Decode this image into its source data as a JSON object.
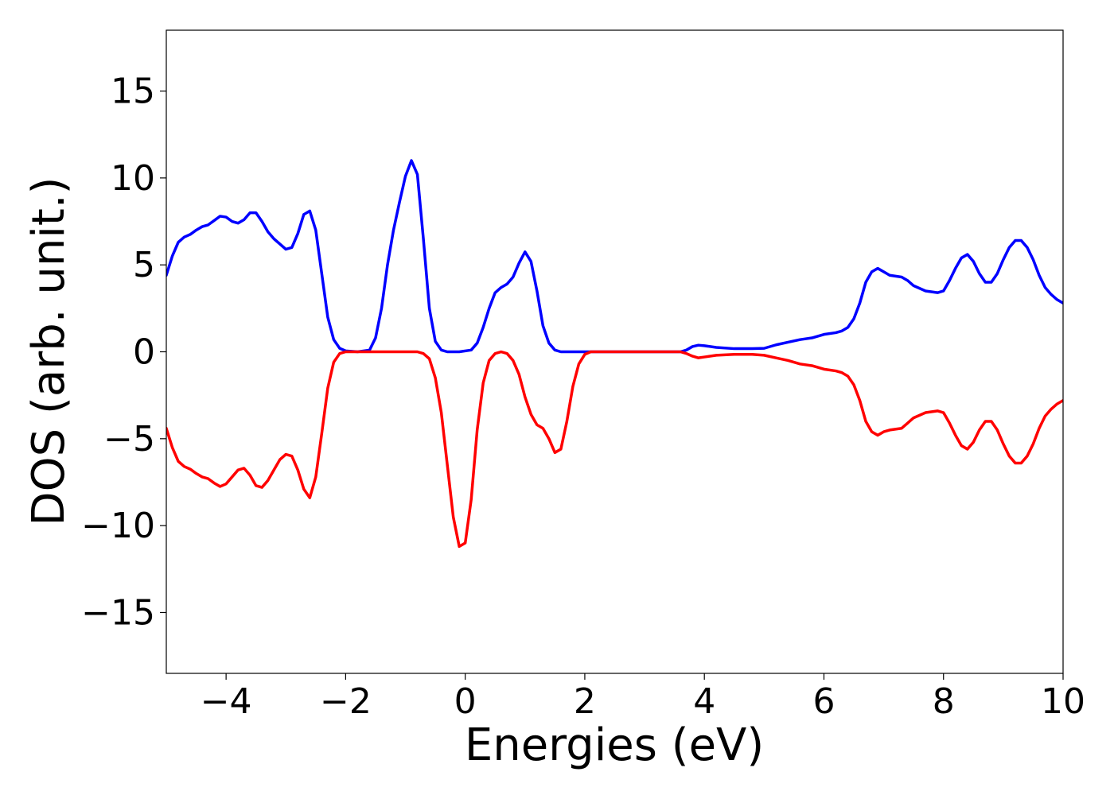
{
  "chart_data": {
    "type": "line",
    "title": "",
    "xlabel": "Energies (eV)",
    "ylabel": "DOS (arb. unit.)",
    "xlim": [
      -5,
      10
    ],
    "ylim": [
      -18.5,
      18.5
    ],
    "xticks": [
      -4,
      -2,
      0,
      2,
      4,
      6,
      8,
      10
    ],
    "xtick_labels": [
      "−4",
      "−2",
      "0",
      "2",
      "4",
      "6",
      "8",
      "10"
    ],
    "yticks": [
      -15,
      -10,
      -5,
      0,
      5,
      10,
      15
    ],
    "ytick_labels": [
      "−15",
      "−10",
      "−5",
      "0",
      "5",
      "10",
      "15"
    ],
    "grid": false,
    "legend": "none",
    "series": [
      {
        "color": "#0000ff",
        "points": [
          [
            -5.0,
            4.4
          ],
          [
            -4.9,
            5.5
          ],
          [
            -4.8,
            6.3
          ],
          [
            -4.7,
            6.6
          ],
          [
            -4.6,
            6.75
          ],
          [
            -4.5,
            7.0
          ],
          [
            -4.4,
            7.2
          ],
          [
            -4.3,
            7.3
          ],
          [
            -4.2,
            7.55
          ],
          [
            -4.1,
            7.8
          ],
          [
            -4.0,
            7.75
          ],
          [
            -3.9,
            7.5
          ],
          [
            -3.8,
            7.4
          ],
          [
            -3.7,
            7.6
          ],
          [
            -3.6,
            8.0
          ],
          [
            -3.5,
            8.0
          ],
          [
            -3.4,
            7.5
          ],
          [
            -3.3,
            6.9
          ],
          [
            -3.2,
            6.5
          ],
          [
            -3.1,
            6.2
          ],
          [
            -3.0,
            5.9
          ],
          [
            -2.9,
            6.0
          ],
          [
            -2.8,
            6.8
          ],
          [
            -2.7,
            7.9
          ],
          [
            -2.6,
            8.1
          ],
          [
            -2.5,
            7.0
          ],
          [
            -2.4,
            4.5
          ],
          [
            -2.3,
            2.0
          ],
          [
            -2.2,
            0.7
          ],
          [
            -2.1,
            0.2
          ],
          [
            -2.0,
            0.05
          ],
          [
            -1.8,
            0.0
          ],
          [
            -1.6,
            0.1
          ],
          [
            -1.5,
            0.8
          ],
          [
            -1.4,
            2.5
          ],
          [
            -1.3,
            5.0
          ],
          [
            -1.2,
            7.0
          ],
          [
            -1.1,
            8.6
          ],
          [
            -1.0,
            10.1
          ],
          [
            -0.9,
            11.0
          ],
          [
            -0.8,
            10.2
          ],
          [
            -0.7,
            6.5
          ],
          [
            -0.6,
            2.5
          ],
          [
            -0.5,
            0.6
          ],
          [
            -0.4,
            0.1
          ],
          [
            -0.3,
            0.0
          ],
          [
            -0.1,
            0.0
          ],
          [
            0.1,
            0.1
          ],
          [
            0.2,
            0.5
          ],
          [
            0.3,
            1.4
          ],
          [
            0.4,
            2.5
          ],
          [
            0.5,
            3.4
          ],
          [
            0.6,
            3.7
          ],
          [
            0.7,
            3.9
          ],
          [
            0.8,
            4.3
          ],
          [
            0.9,
            5.1
          ],
          [
            1.0,
            5.75
          ],
          [
            1.1,
            5.2
          ],
          [
            1.2,
            3.5
          ],
          [
            1.3,
            1.5
          ],
          [
            1.4,
            0.5
          ],
          [
            1.5,
            0.1
          ],
          [
            1.6,
            0.0
          ],
          [
            2.0,
            0.0
          ],
          [
            3.0,
            0.0
          ],
          [
            3.6,
            0.0
          ],
          [
            3.7,
            0.1
          ],
          [
            3.8,
            0.3
          ],
          [
            3.9,
            0.38
          ],
          [
            4.0,
            0.35
          ],
          [
            4.2,
            0.25
          ],
          [
            4.5,
            0.18
          ],
          [
            4.8,
            0.18
          ],
          [
            5.0,
            0.2
          ],
          [
            5.2,
            0.4
          ],
          [
            5.4,
            0.55
          ],
          [
            5.6,
            0.7
          ],
          [
            5.8,
            0.8
          ],
          [
            6.0,
            1.0
          ],
          [
            6.2,
            1.1
          ],
          [
            6.3,
            1.2
          ],
          [
            6.4,
            1.4
          ],
          [
            6.5,
            1.9
          ],
          [
            6.6,
            2.8
          ],
          [
            6.7,
            4.0
          ],
          [
            6.8,
            4.6
          ],
          [
            6.9,
            4.8
          ],
          [
            7.0,
            4.6
          ],
          [
            7.1,
            4.4
          ],
          [
            7.3,
            4.3
          ],
          [
            7.4,
            4.1
          ],
          [
            7.5,
            3.8
          ],
          [
            7.7,
            3.5
          ],
          [
            7.9,
            3.4
          ],
          [
            8.0,
            3.5
          ],
          [
            8.1,
            4.1
          ],
          [
            8.2,
            4.8
          ],
          [
            8.3,
            5.4
          ],
          [
            8.4,
            5.6
          ],
          [
            8.5,
            5.2
          ],
          [
            8.6,
            4.5
          ],
          [
            8.7,
            4.0
          ],
          [
            8.8,
            4.0
          ],
          [
            8.9,
            4.5
          ],
          [
            9.0,
            5.3
          ],
          [
            9.1,
            6.0
          ],
          [
            9.2,
            6.4
          ],
          [
            9.3,
            6.4
          ],
          [
            9.4,
            6.0
          ],
          [
            9.5,
            5.3
          ],
          [
            9.6,
            4.4
          ],
          [
            9.7,
            3.7
          ],
          [
            9.8,
            3.3
          ],
          [
            9.9,
            3.0
          ],
          [
            10.0,
            2.8
          ]
        ]
      },
      {
        "color": "#ff0000",
        "points": [
          [
            -5.0,
            -4.4
          ],
          [
            -4.9,
            -5.5
          ],
          [
            -4.8,
            -6.3
          ],
          [
            -4.7,
            -6.6
          ],
          [
            -4.6,
            -6.75
          ],
          [
            -4.5,
            -7.0
          ],
          [
            -4.4,
            -7.2
          ],
          [
            -4.3,
            -7.3
          ],
          [
            -4.2,
            -7.55
          ],
          [
            -4.1,
            -7.75
          ],
          [
            -4.0,
            -7.6
          ],
          [
            -3.9,
            -7.2
          ],
          [
            -3.8,
            -6.8
          ],
          [
            -3.7,
            -6.7
          ],
          [
            -3.6,
            -7.1
          ],
          [
            -3.5,
            -7.7
          ],
          [
            -3.4,
            -7.8
          ],
          [
            -3.3,
            -7.4
          ],
          [
            -3.2,
            -6.8
          ],
          [
            -3.1,
            -6.2
          ],
          [
            -3.0,
            -5.9
          ],
          [
            -2.9,
            -6.0
          ],
          [
            -2.8,
            -6.8
          ],
          [
            -2.7,
            -7.9
          ],
          [
            -2.6,
            -8.4
          ],
          [
            -2.5,
            -7.2
          ],
          [
            -2.4,
            -4.7
          ],
          [
            -2.3,
            -2.1
          ],
          [
            -2.2,
            -0.6
          ],
          [
            -2.1,
            -0.1
          ],
          [
            -2.0,
            0.0
          ],
          [
            -1.0,
            0.0
          ],
          [
            -0.8,
            0.0
          ],
          [
            -0.7,
            -0.1
          ],
          [
            -0.6,
            -0.4
          ],
          [
            -0.5,
            -1.5
          ],
          [
            -0.4,
            -3.5
          ],
          [
            -0.3,
            -6.5
          ],
          [
            -0.2,
            -9.5
          ],
          [
            -0.1,
            -11.2
          ],
          [
            0.0,
            -11.0
          ],
          [
            0.1,
            -8.5
          ],
          [
            0.2,
            -4.5
          ],
          [
            0.3,
            -1.8
          ],
          [
            0.4,
            -0.5
          ],
          [
            0.5,
            -0.1
          ],
          [
            0.6,
            0.0
          ],
          [
            0.7,
            -0.1
          ],
          [
            0.8,
            -0.5
          ],
          [
            0.9,
            -1.3
          ],
          [
            1.0,
            -2.6
          ],
          [
            1.1,
            -3.6
          ],
          [
            1.2,
            -4.2
          ],
          [
            1.3,
            -4.4
          ],
          [
            1.4,
            -5.0
          ],
          [
            1.5,
            -5.8
          ],
          [
            1.6,
            -5.6
          ],
          [
            1.7,
            -4.0
          ],
          [
            1.8,
            -2.0
          ],
          [
            1.9,
            -0.7
          ],
          [
            2.0,
            -0.15
          ],
          [
            2.1,
            0.0
          ],
          [
            3.0,
            0.0
          ],
          [
            3.6,
            0.0
          ],
          [
            3.7,
            -0.1
          ],
          [
            3.8,
            -0.25
          ],
          [
            3.9,
            -0.35
          ],
          [
            4.0,
            -0.3
          ],
          [
            4.2,
            -0.2
          ],
          [
            4.5,
            -0.15
          ],
          [
            4.8,
            -0.15
          ],
          [
            5.0,
            -0.2
          ],
          [
            5.2,
            -0.35
          ],
          [
            5.4,
            -0.5
          ],
          [
            5.6,
            -0.7
          ],
          [
            5.8,
            -0.8
          ],
          [
            6.0,
            -1.0
          ],
          [
            6.2,
            -1.1
          ],
          [
            6.3,
            -1.2
          ],
          [
            6.4,
            -1.4
          ],
          [
            6.5,
            -1.9
          ],
          [
            6.6,
            -2.8
          ],
          [
            6.7,
            -4.0
          ],
          [
            6.8,
            -4.6
          ],
          [
            6.9,
            -4.8
          ],
          [
            7.0,
            -4.6
          ],
          [
            7.1,
            -4.5
          ],
          [
            7.3,
            -4.4
          ],
          [
            7.4,
            -4.1
          ],
          [
            7.5,
            -3.8
          ],
          [
            7.7,
            -3.5
          ],
          [
            7.9,
            -3.4
          ],
          [
            8.0,
            -3.5
          ],
          [
            8.1,
            -4.1
          ],
          [
            8.2,
            -4.8
          ],
          [
            8.3,
            -5.4
          ],
          [
            8.4,
            -5.6
          ],
          [
            8.5,
            -5.2
          ],
          [
            8.6,
            -4.5
          ],
          [
            8.7,
            -4.0
          ],
          [
            8.8,
            -4.0
          ],
          [
            8.9,
            -4.5
          ],
          [
            9.0,
            -5.3
          ],
          [
            9.1,
            -6.0
          ],
          [
            9.2,
            -6.4
          ],
          [
            9.3,
            -6.4
          ],
          [
            9.4,
            -6.0
          ],
          [
            9.5,
            -5.3
          ],
          [
            9.6,
            -4.4
          ],
          [
            9.7,
            -3.7
          ],
          [
            9.8,
            -3.3
          ],
          [
            9.9,
            -3.0
          ],
          [
            10.0,
            -2.8
          ]
        ]
      }
    ]
  }
}
